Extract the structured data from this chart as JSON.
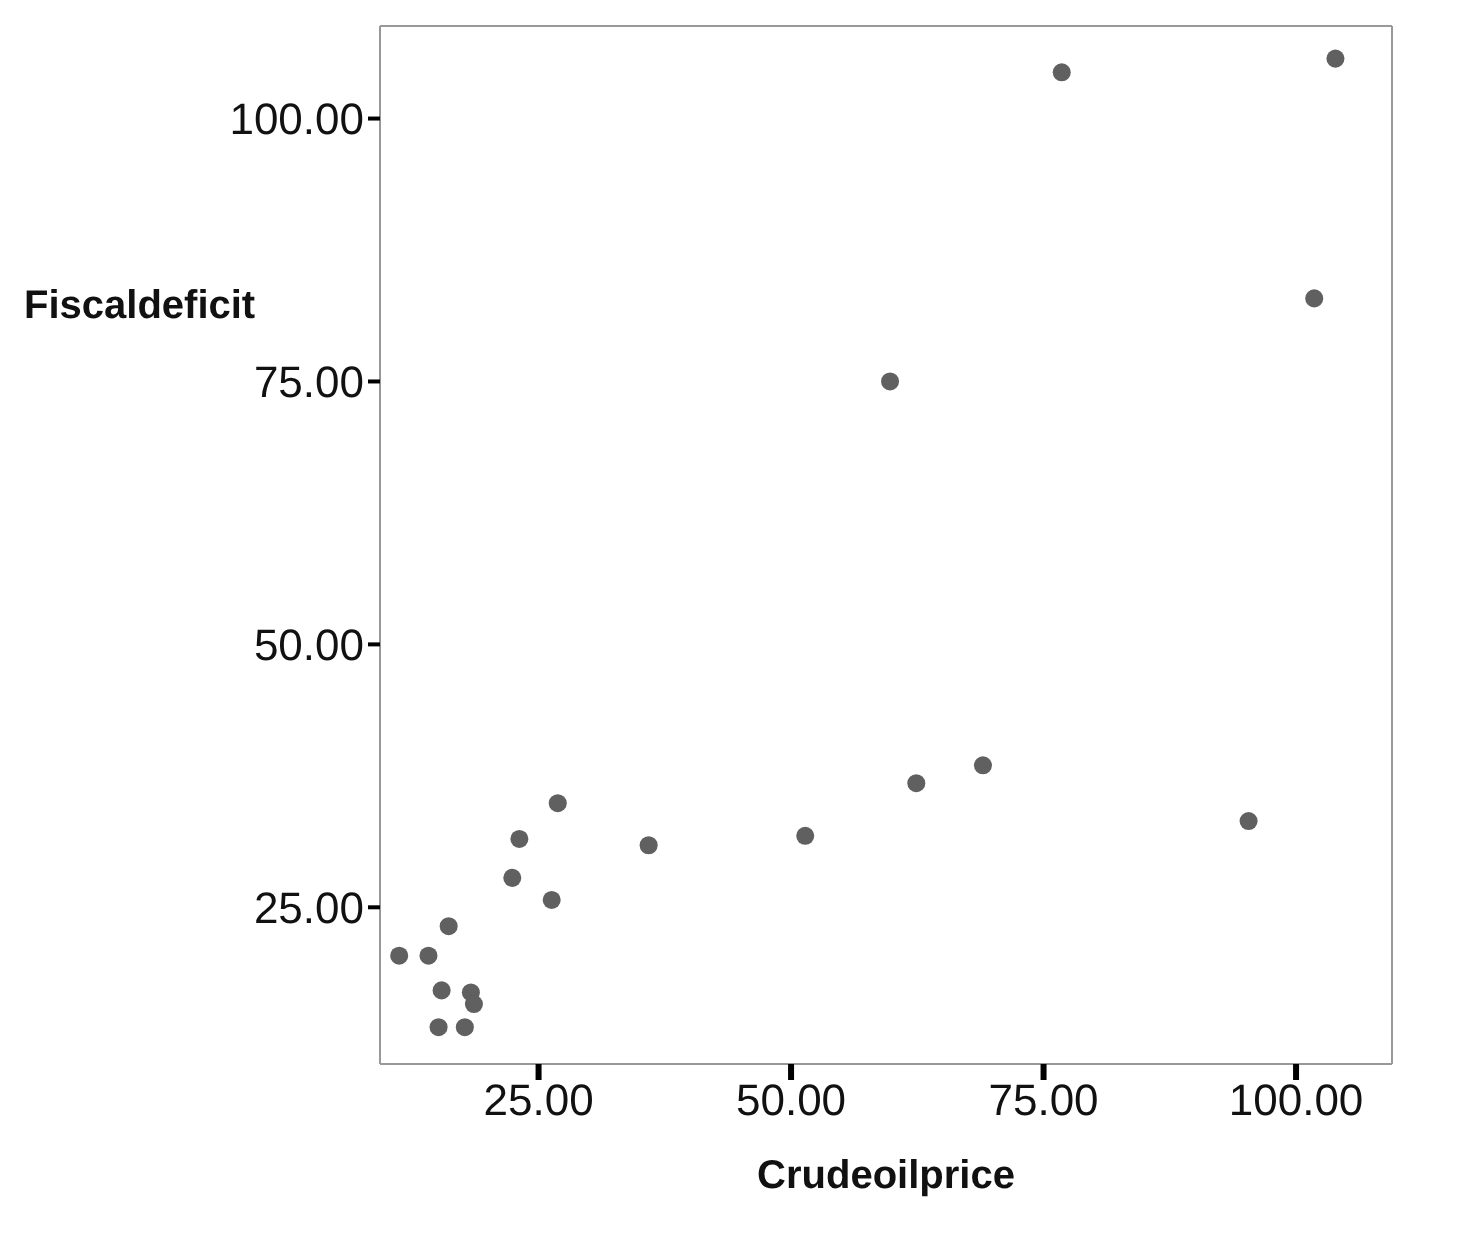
{
  "chart_data": {
    "type": "scatter",
    "xlabel": "Crudeoilprice",
    "ylabel": "Fiscaldeficit",
    "x": [
      76.8,
      103.9,
      101.8,
      59.8,
      69.0,
      62.4,
      95.3,
      51.4,
      35.9,
      26.9,
      23.1,
      22.4,
      26.3,
      16.1,
      11.2,
      14.1,
      15.4,
      18.3,
      18.6,
      15.1,
      17.7
    ],
    "series": [
      {
        "color": "#606060",
        "values": [
          104.4,
          105.7,
          82.9,
          75.0,
          38.5,
          36.8,
          33.2,
          31.8,
          30.9,
          34.9,
          31.5,
          27.8,
          25.7,
          23.2,
          20.4,
          20.4,
          17.1,
          16.9,
          15.8,
          13.6,
          13.6
        ]
      }
    ],
    "xlim": [
      9.3,
      109.5
    ],
    "ylim": [
      10.1,
      108.8
    ],
    "xticks": [
      {
        "value": 25,
        "label": "25.00"
      },
      {
        "value": 50,
        "label": "50.00"
      },
      {
        "value": 75,
        "label": "75.00"
      },
      {
        "value": 100,
        "label": "100.00"
      }
    ],
    "yticks": [
      {
        "value": 25,
        "label": "25.00"
      },
      {
        "value": 50,
        "label": "50.00"
      },
      {
        "value": 75,
        "label": "75.00"
      },
      {
        "value": 100,
        "label": "100.00"
      }
    ],
    "marker": "circle",
    "grid": false,
    "legend": false
  }
}
